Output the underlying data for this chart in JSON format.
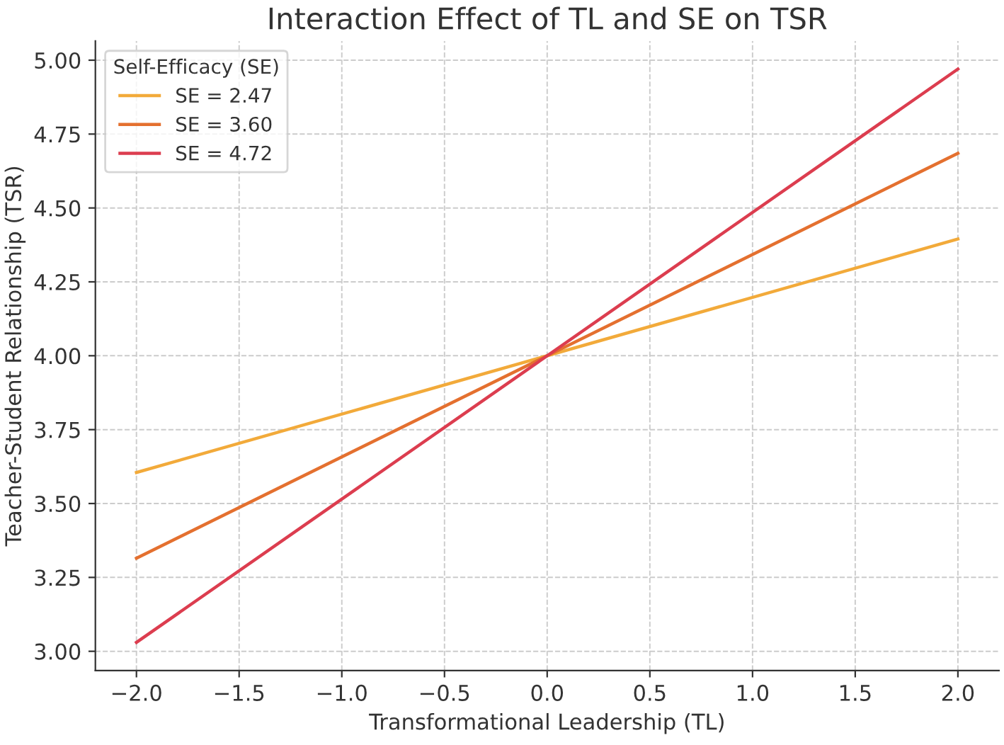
{
  "chart_data": {
    "type": "line",
    "title": "Interaction Effect of TL and SE on TSR",
    "xlabel": "Transformational Leadership (TL)",
    "ylabel": "Teacher-Student Relationship (TSR)",
    "legend_title": "Self-Efficacy (SE)",
    "x": [
      -2.0,
      2.0
    ],
    "series": [
      {
        "name": "SE = 2.47",
        "color": "#f2aa3a",
        "values": [
          3.605,
          4.395
        ]
      },
      {
        "name": "SE = 3.60",
        "color": "#e4702f",
        "values": [
          3.315,
          4.685
        ]
      },
      {
        "name": "SE = 4.72",
        "color": "#dc3d4f",
        "values": [
          3.03,
          4.97
        ]
      }
    ],
    "xlim": [
      -2.2,
      2.2
    ],
    "ylim": [
      2.935,
      5.065
    ],
    "xticks": [
      {
        "value": -2.0,
        "label": "−2.0"
      },
      {
        "value": -1.5,
        "label": "−1.5"
      },
      {
        "value": -1.0,
        "label": "−1.0"
      },
      {
        "value": -0.5,
        "label": "−0.5"
      },
      {
        "value": 0.0,
        "label": "0.0"
      },
      {
        "value": 0.5,
        "label": "0.5"
      },
      {
        "value": 1.0,
        "label": "1.0"
      },
      {
        "value": 1.5,
        "label": "1.5"
      },
      {
        "value": 2.0,
        "label": "2.0"
      }
    ],
    "yticks": [
      {
        "value": 3.0,
        "label": "3.00"
      },
      {
        "value": 3.25,
        "label": "3.25"
      },
      {
        "value": 3.5,
        "label": "3.50"
      },
      {
        "value": 3.75,
        "label": "3.75"
      },
      {
        "value": 4.0,
        "label": "4.00"
      },
      {
        "value": 4.25,
        "label": "4.25"
      },
      {
        "value": 4.5,
        "label": "4.50"
      },
      {
        "value": 4.75,
        "label": "4.75"
      },
      {
        "value": 5.0,
        "label": "5.00"
      }
    ],
    "grid": true,
    "legend": "top left",
    "marker": "none",
    "line_style": "solid"
  }
}
